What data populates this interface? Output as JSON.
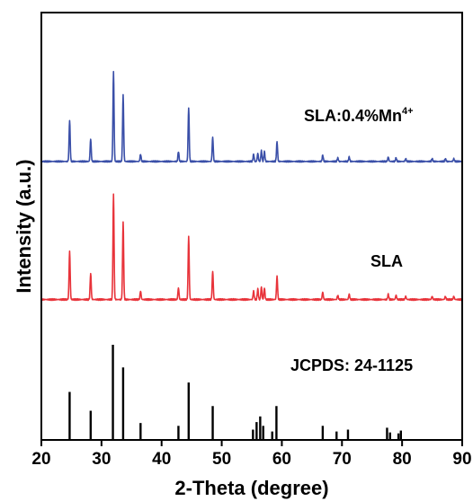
{
  "chart_data": {
    "type": "line",
    "title": "",
    "xlabel": "2-Theta (degree)",
    "ylabel": "Intensity (a.u.)",
    "xlim": [
      20,
      90
    ],
    "xticks": [
      "20",
      "30",
      "40",
      "50",
      "60",
      "70",
      "80",
      "90"
    ],
    "yticks_shown": false,
    "grid": false,
    "series": [
      {
        "name": "SLA:0.4%Mn",
        "name_sup": "4+",
        "style": "line",
        "color": "#3a4fa8",
        "peaks": [
          {
            "x": 24.7,
            "h": 0.46
          },
          {
            "x": 28.2,
            "h": 0.25
          },
          {
            "x": 32.0,
            "h": 1.0
          },
          {
            "x": 33.6,
            "h": 0.74
          },
          {
            "x": 36.5,
            "h": 0.08
          },
          {
            "x": 42.8,
            "h": 0.11
          },
          {
            "x": 44.5,
            "h": 0.6
          },
          {
            "x": 48.5,
            "h": 0.27
          },
          {
            "x": 55.3,
            "h": 0.08
          },
          {
            "x": 56.0,
            "h": 0.09
          },
          {
            "x": 56.6,
            "h": 0.12
          },
          {
            "x": 57.1,
            "h": 0.11
          },
          {
            "x": 59.2,
            "h": 0.22
          },
          {
            "x": 66.8,
            "h": 0.07
          },
          {
            "x": 69.3,
            "h": 0.04
          },
          {
            "x": 71.2,
            "h": 0.05
          },
          {
            "x": 77.7,
            "h": 0.05
          },
          {
            "x": 79.0,
            "h": 0.04
          },
          {
            "x": 80.6,
            "h": 0.03
          },
          {
            "x": 85.0,
            "h": 0.03
          },
          {
            "x": 87.2,
            "h": 0.03
          },
          {
            "x": 88.6,
            "h": 0.03
          }
        ]
      },
      {
        "name": "SLA",
        "style": "line",
        "color": "#e8333a",
        "peaks": [
          {
            "x": 24.7,
            "h": 0.46
          },
          {
            "x": 28.2,
            "h": 0.25
          },
          {
            "x": 32.0,
            "h": 1.0
          },
          {
            "x": 33.6,
            "h": 0.74
          },
          {
            "x": 36.5,
            "h": 0.08
          },
          {
            "x": 42.8,
            "h": 0.11
          },
          {
            "x": 44.5,
            "h": 0.6
          },
          {
            "x": 48.5,
            "h": 0.27
          },
          {
            "x": 55.3,
            "h": 0.08
          },
          {
            "x": 56.0,
            "h": 0.1
          },
          {
            "x": 56.6,
            "h": 0.12
          },
          {
            "x": 57.1,
            "h": 0.11
          },
          {
            "x": 59.2,
            "h": 0.22
          },
          {
            "x": 66.8,
            "h": 0.07
          },
          {
            "x": 69.3,
            "h": 0.04
          },
          {
            "x": 71.2,
            "h": 0.05
          },
          {
            "x": 77.7,
            "h": 0.05
          },
          {
            "x": 79.0,
            "h": 0.04
          },
          {
            "x": 80.6,
            "h": 0.03
          },
          {
            "x": 85.0,
            "h": 0.03
          },
          {
            "x": 87.2,
            "h": 0.03
          },
          {
            "x": 88.6,
            "h": 0.03
          }
        ]
      },
      {
        "name": "JCPDS: 24-1125",
        "style": "sticks",
        "color": "#000000",
        "peaks": [
          {
            "x": 24.7,
            "h": 0.5
          },
          {
            "x": 28.2,
            "h": 0.3
          },
          {
            "x": 31.9,
            "h": 1.0
          },
          {
            "x": 33.6,
            "h": 0.76
          },
          {
            "x": 36.5,
            "h": 0.17
          },
          {
            "x": 42.8,
            "h": 0.14
          },
          {
            "x": 44.5,
            "h": 0.6
          },
          {
            "x": 48.5,
            "h": 0.35
          },
          {
            "x": 55.2,
            "h": 0.1
          },
          {
            "x": 55.8,
            "h": 0.18
          },
          {
            "x": 56.4,
            "h": 0.24
          },
          {
            "x": 56.9,
            "h": 0.14
          },
          {
            "x": 58.4,
            "h": 0.08
          },
          {
            "x": 59.1,
            "h": 0.35
          },
          {
            "x": 66.8,
            "h": 0.14
          },
          {
            "x": 69.1,
            "h": 0.08
          },
          {
            "x": 71.0,
            "h": 0.1
          },
          {
            "x": 77.5,
            "h": 0.12
          },
          {
            "x": 78.0,
            "h": 0.07
          },
          {
            "x": 79.4,
            "h": 0.06
          },
          {
            "x": 79.8,
            "h": 0.09
          }
        ]
      }
    ]
  }
}
